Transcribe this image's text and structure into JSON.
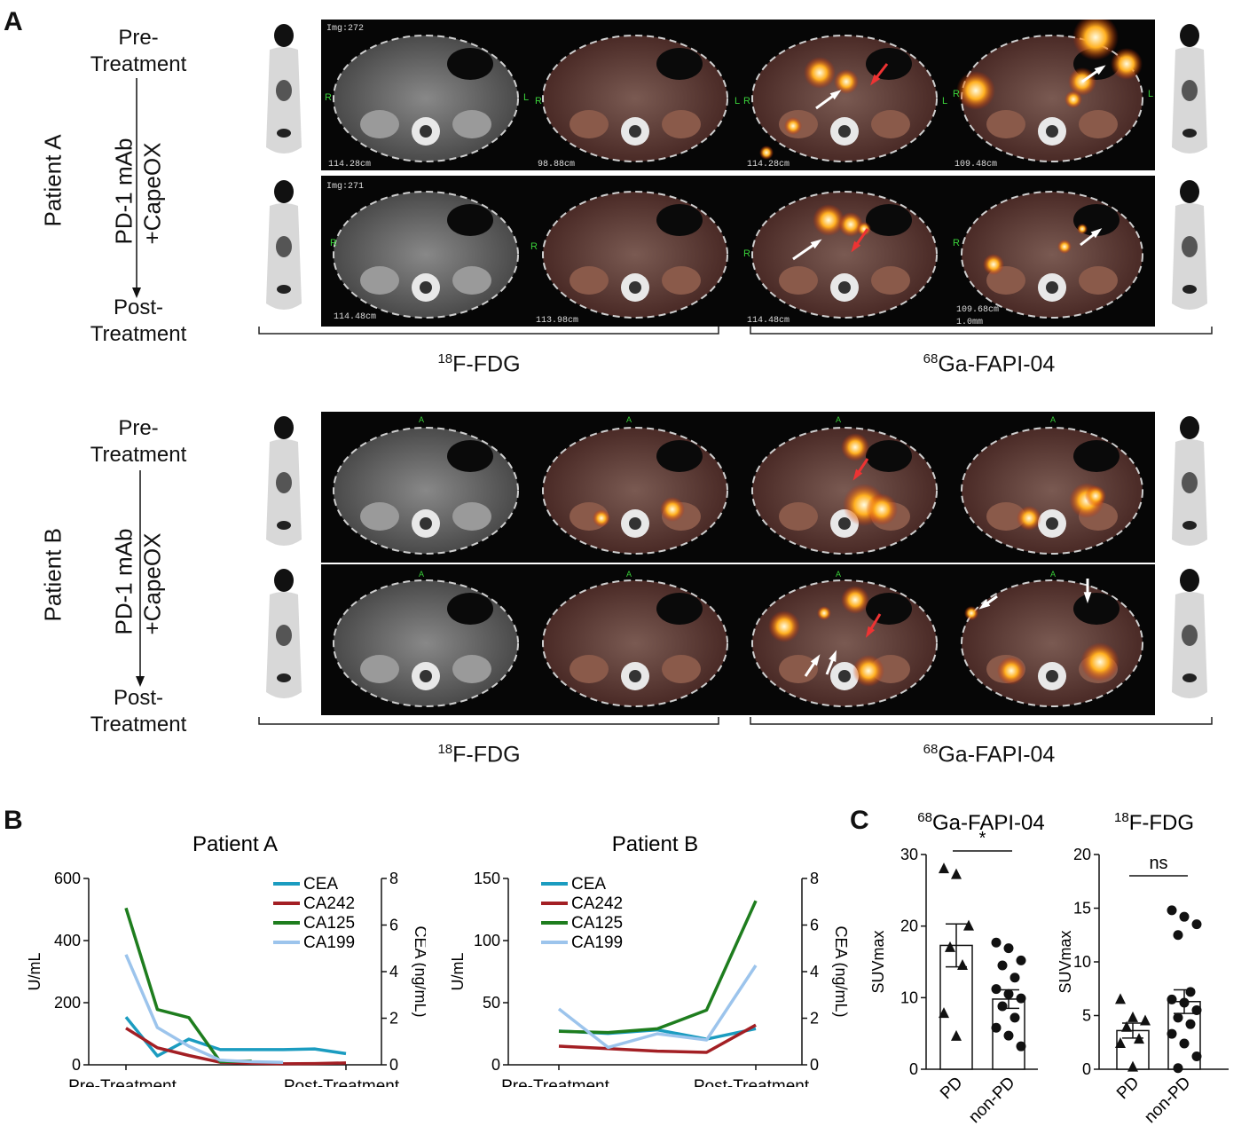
{
  "panels": {
    "a_letter": "A",
    "b_letter": "B",
    "c_letter": "C"
  },
  "panel_a": {
    "patient_a": {
      "label": "Patient A",
      "pre": "Pre-\nTreatment",
      "regimen1": "PD-1 mAb",
      "regimen2": "+CapeOX",
      "post": "Post-\nTreatment",
      "row1_texts": {
        "img": "Img:272",
        "d1": "114.28cm",
        "d2": "98.88cm",
        "d3": "114.28cm",
        "d4": "109.48cm"
      },
      "row2_texts": {
        "img": "Img:271",
        "d1": "114.48cm",
        "d2": "113.98cm",
        "d3": "114.48cm",
        "d4": "109.68cm",
        "d5": "1.0mm"
      }
    },
    "patient_b": {
      "label": "Patient B",
      "pre": "Pre-\nTreatment",
      "regimen1": "PD-1 mAb",
      "regimen2": "+CapeOX",
      "post": "Post-\nTreatment"
    },
    "tracer_fdg_sup": "18",
    "tracer_fdg": "F-FDG",
    "tracer_fapi_sup": "68",
    "tracer_fapi": "Ga-FAPI-04",
    "orient_R": "R",
    "orient_L": "L",
    "orient_A": "A"
  },
  "chart_data": [
    {
      "type": "line",
      "title": "Patient A",
      "ylabel": "U/mL",
      "y2label": "CEA (ng/mL)",
      "ylim": [
        0,
        600
      ],
      "yticks": [
        0,
        200,
        400,
        600
      ],
      "y2lim": [
        0,
        8
      ],
      "y2ticks": [
        0,
        2,
        4,
        6,
        8
      ],
      "xticks": [
        "Pre-Treatment",
        "Post-Treatment"
      ],
      "x": [
        0,
        1,
        2,
        3,
        4,
        5,
        6,
        7
      ],
      "legend": "top-right",
      "series": [
        {
          "name": "CEA",
          "axis": "right",
          "color": "#1b9cc0",
          "values": [
            2.05,
            0.38,
            1.1,
            0.65,
            0.65,
            0.65,
            0.68,
            0.48
          ]
        },
        {
          "name": "CA242",
          "axis": "left",
          "color": "#a31f24",
          "values": [
            118,
            55,
            30,
            8,
            5,
            3,
            4,
            6
          ]
        },
        {
          "name": "CA125",
          "axis": "left",
          "color": "#1e7d1e",
          "values": [
            505,
            178,
            152,
            10,
            12,
            null,
            null,
            null
          ]
        },
        {
          "name": "CA199",
          "axis": "left",
          "color": "#9cc4ec",
          "values": [
            355,
            120,
            60,
            15,
            10,
            8,
            null,
            null
          ]
        }
      ]
    },
    {
      "type": "line",
      "title": "Patient B",
      "ylabel": "U/mL",
      "y2label": "CEA (ng/mL)",
      "ylim": [
        0,
        150
      ],
      "yticks": [
        0,
        50,
        100,
        150
      ],
      "y2lim": [
        0,
        8
      ],
      "y2ticks": [
        0,
        2,
        4,
        6,
        8
      ],
      "xticks": [
        "Pre-Treatment",
        "Post-Treatment"
      ],
      "x": [
        0,
        1,
        2,
        3,
        4
      ],
      "legend": "top-left",
      "series": [
        {
          "name": "CEA",
          "axis": "right",
          "color": "#1b9cc0",
          "values": [
            1.45,
            1.35,
            1.5,
            1.1,
            1.55
          ]
        },
        {
          "name": "CA242",
          "axis": "left",
          "color": "#a31f24",
          "values": [
            15,
            13,
            11,
            10,
            32
          ]
        },
        {
          "name": "CA125",
          "axis": "left",
          "color": "#1e7d1e",
          "values": [
            27,
            26,
            29,
            44,
            132
          ]
        },
        {
          "name": "CA199",
          "axis": "left",
          "color": "#9cc4ec",
          "values": [
            45,
            14,
            25,
            20,
            80
          ]
        }
      ]
    },
    {
      "type": "bar",
      "title_sup": "68",
      "title": "Ga-FAPI-04",
      "ylabel": "SUVmax",
      "ylim": [
        0,
        30
      ],
      "yticks": [
        0,
        10,
        20,
        30
      ],
      "categories": [
        "PD",
        "non-PD"
      ],
      "values": [
        17.3,
        9.8
      ],
      "errors": [
        3.0,
        1.3
      ],
      "points": [
        [
          28,
          27.2,
          20,
          17,
          14.5,
          7.8,
          4.6
        ],
        [
          17.7,
          16.9,
          15.2,
          14.5,
          12.8,
          11.2,
          10.5,
          9.9,
          8.8,
          7.2,
          5.8,
          4.7,
          3.2
        ]
      ],
      "markers": [
        "triangle",
        "circle"
      ],
      "significance": "*"
    },
    {
      "type": "bar",
      "title_sup": "18",
      "title": "F-FDG",
      "ylabel": "SUVmax",
      "ylim": [
        0,
        20
      ],
      "yticks": [
        0,
        5,
        10,
        15,
        20
      ],
      "categories": [
        "PD",
        "non-PD"
      ],
      "values": [
        3.6,
        6.3
      ],
      "errors": [
        0.7,
        1.1
      ],
      "points": [
        [
          6.5,
          4.8,
          4.5,
          3.9,
          2.8,
          2.4,
          0.2
        ],
        [
          14.8,
          14.2,
          13.5,
          12.5,
          7.2,
          6.5,
          6.2,
          5.5,
          4.8,
          4.2,
          3.3,
          2.4,
          1.2,
          0.1
        ]
      ],
      "markers": [
        "triangle",
        "circle"
      ],
      "significance": "ns"
    }
  ]
}
